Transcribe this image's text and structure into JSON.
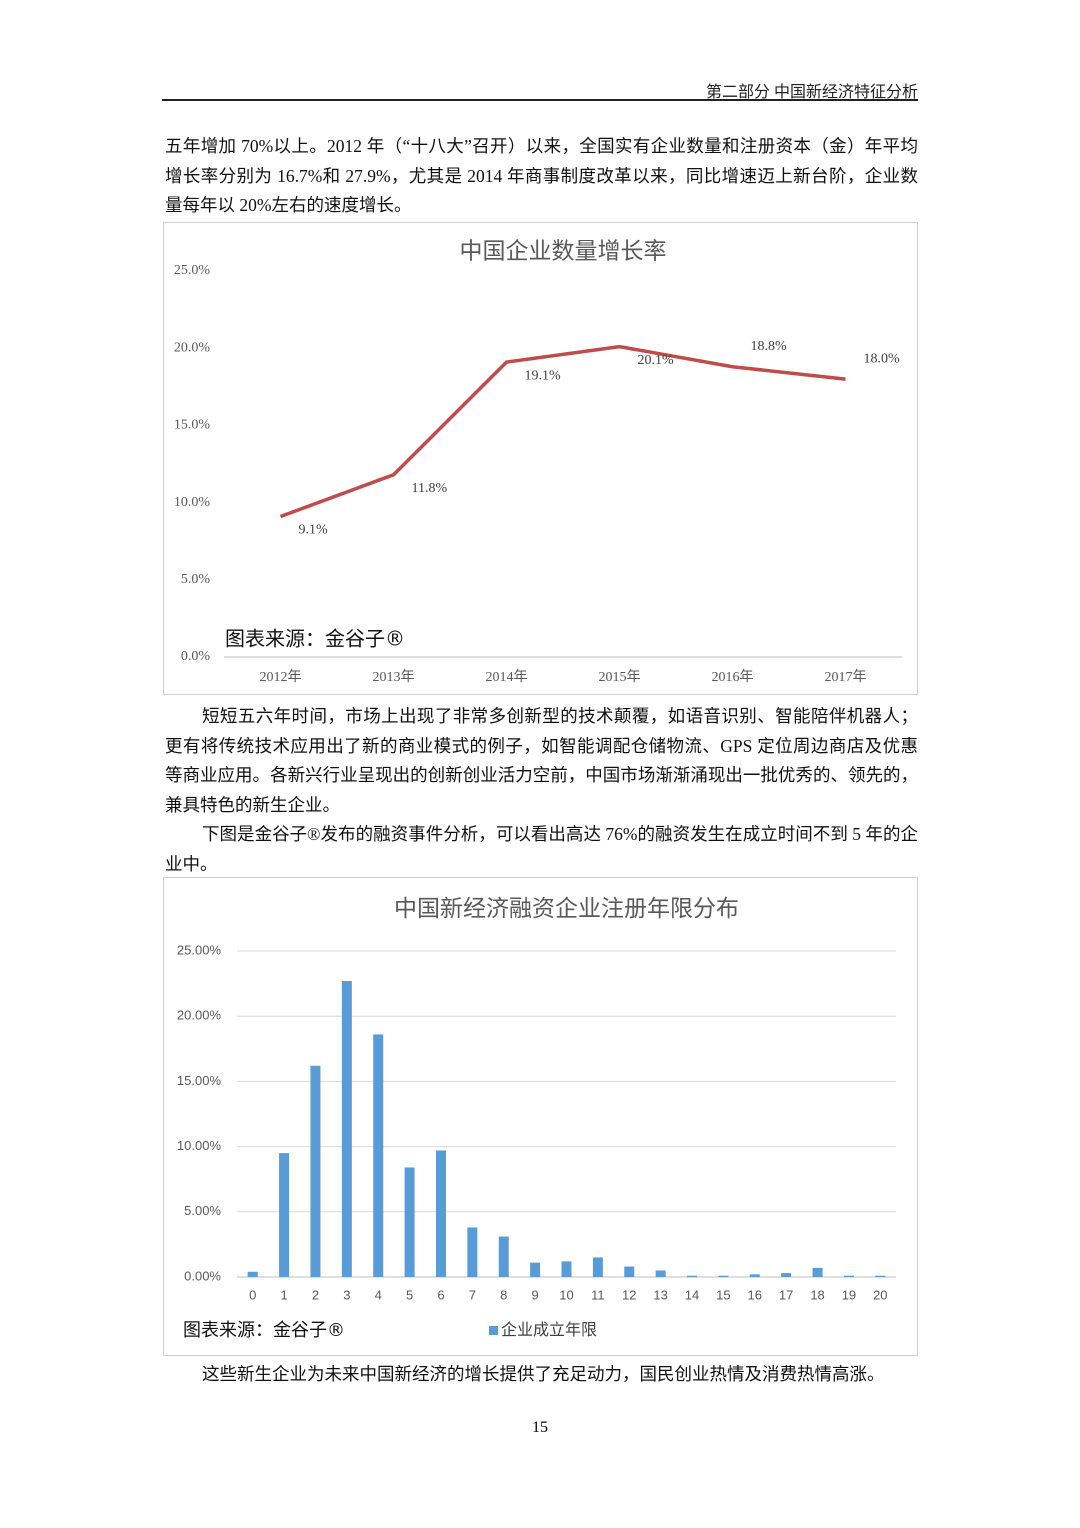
{
  "header": {
    "title": "第二部分  中国新经济特征分析"
  },
  "paragraphs": [
    "五年增加 70%以上。2012 年（“十八大”召开）以来，全国实有企业数量和注册资本（金）年平均增长率分别为 16.7%和 27.9%，尤其是 2014 年商事制度改革以来，同比增速迈上新台阶，企业数量每年以 20%左右的速度增长。",
    "短短五六年时间，市场上出现了非常多创新型的技术颠覆，如语音识别、智能陪伴机器人；更有将传统技术应用出了新的商业模式的例子，如智能调配仓储物流、GPS 定位周边商店及优惠等商业应用。各新兴行业呈现出的创新创业活力空前，中国市场渐渐涌现出一批优秀的、领先的，兼具特色的新生企业。",
    "下图是金谷子®发布的融资事件分析，可以看出高达 76%的融资发生在成立时间不到 5 年的企业中。",
    "这些新生企业为未来中国新经济的增长提供了充足动力，国民创业热情及消费热情高涨。"
  ],
  "page_number": "15",
  "chart_data": [
    {
      "type": "line",
      "title": "中国企业数量增长率",
      "categories": [
        "2012年",
        "2013年",
        "2014年",
        "2015年",
        "2016年",
        "2017年"
      ],
      "values": [
        9.1,
        11.8,
        19.1,
        20.1,
        18.8,
        18.0
      ],
      "value_labels": [
        "9.1%",
        "11.8%",
        "19.1%",
        "20.1%",
        "18.8%",
        "18.0%"
      ],
      "color": "#bf4b4a",
      "ylim": [
        0,
        25
      ],
      "yticks": [
        {
          "value": 0,
          "label": "0.0%"
        },
        {
          "value": 5,
          "label": "5.0%"
        },
        {
          "value": 10,
          "label": "10.0%"
        },
        {
          "value": 15,
          "label": "15.0%"
        },
        {
          "value": 20,
          "label": "20.0%"
        },
        {
          "value": 25,
          "label": "25.0%"
        }
      ],
      "grid": false,
      "annotation": "图表来源：金谷子®"
    },
    {
      "type": "bar",
      "title": "中国新经济融资企业注册年限分布",
      "categories": [
        "0",
        "1",
        "2",
        "3",
        "4",
        "5",
        "6",
        "7",
        "8",
        "9",
        "10",
        "11",
        "12",
        "13",
        "14",
        "15",
        "16",
        "17",
        "18",
        "19",
        "20"
      ],
      "series": [
        {
          "name": "企业成立年限",
          "color": "#5b9bd5",
          "values": [
            0.4,
            9.5,
            16.2,
            22.7,
            18.6,
            8.4,
            9.7,
            3.8,
            3.1,
            1.1,
            1.2,
            1.5,
            0.8,
            0.5,
            0.1,
            0.1,
            0.2,
            0.3,
            0.7,
            0.1,
            0.1
          ]
        }
      ],
      "ylim": [
        0,
        25
      ],
      "yticks": [
        {
          "value": 0,
          "label": "0.00%"
        },
        {
          "value": 5,
          "label": "5.00%"
        },
        {
          "value": 10,
          "label": "10.00%"
        },
        {
          "value": 15,
          "label": "15.00%"
        },
        {
          "value": 20,
          "label": "20.00%"
        },
        {
          "value": 25,
          "label": "25.00%"
        }
      ],
      "grid": true,
      "legend": "bottom",
      "annotation": "图表来源：金谷子®"
    }
  ]
}
